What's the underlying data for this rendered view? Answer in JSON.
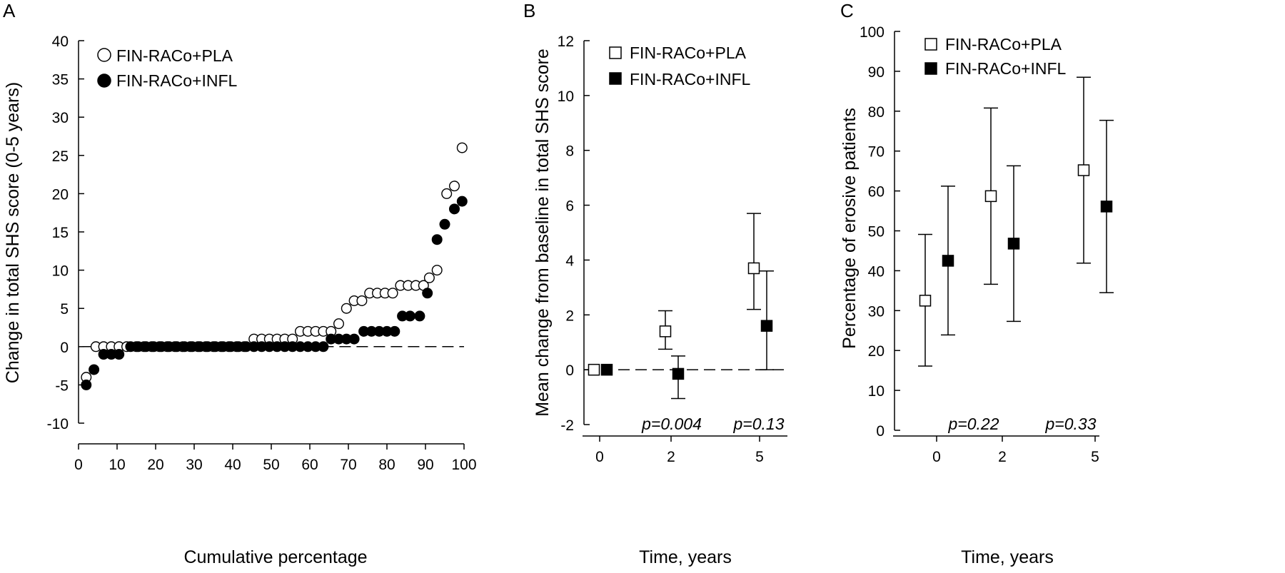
{
  "chart_data": [
    {
      "panel": "A",
      "type": "scatter",
      "xlabel": "Cumulative percentage",
      "ylabel": "Change in total SHS score (0-5 years)",
      "xlim": [
        0,
        100
      ],
      "ylim": [
        -10,
        40
      ],
      "xticks": [
        "0",
        "10",
        "20",
        "30",
        "40",
        "50",
        "60",
        "70",
        "80",
        "90",
        "100"
      ],
      "yticks": [
        "-10",
        "-5",
        "0",
        "5",
        "10",
        "15",
        "20",
        "25",
        "30",
        "35",
        "40"
      ],
      "legend": [
        {
          "label": "FIN-RACo+PLA",
          "marker": "open-circle"
        },
        {
          "label": "FIN-RACo+INFL",
          "marker": "filled-circle"
        }
      ],
      "legend_position": "top-left",
      "reference_line": {
        "y": 0,
        "style": "dashed"
      },
      "series": [
        {
          "name": "FIN-RACo+PLA",
          "points": [
            [
              2,
              -4
            ],
            [
              4.5,
              0
            ],
            [
              6.5,
              0
            ],
            [
              8.5,
              0
            ],
            [
              10.5,
              0
            ],
            [
              12.5,
              0
            ],
            [
              15,
              0
            ],
            [
              17,
              0
            ],
            [
              19,
              0
            ],
            [
              21,
              0
            ],
            [
              23,
              0
            ],
            [
              25,
              0
            ],
            [
              27,
              0
            ],
            [
              29,
              0
            ],
            [
              31,
              0
            ],
            [
              33,
              0
            ],
            [
              35,
              0
            ],
            [
              37,
              0
            ],
            [
              39,
              0
            ],
            [
              41,
              0
            ],
            [
              43,
              0
            ],
            [
              45.5,
              1
            ],
            [
              47.5,
              1
            ],
            [
              49.5,
              1
            ],
            [
              51.5,
              1
            ],
            [
              53.5,
              1
            ],
            [
              55.5,
              1
            ],
            [
              57.5,
              2
            ],
            [
              59.5,
              2
            ],
            [
              61.5,
              2
            ],
            [
              63.5,
              2
            ],
            [
              65.5,
              2
            ],
            [
              67.5,
              3
            ],
            [
              69.5,
              5
            ],
            [
              71.5,
              6
            ],
            [
              73.5,
              6
            ],
            [
              75.5,
              7
            ],
            [
              77.5,
              7
            ],
            [
              79.5,
              7
            ],
            [
              81.5,
              7
            ],
            [
              83.5,
              8
            ],
            [
              85.5,
              8
            ],
            [
              87.5,
              8
            ],
            [
              89.5,
              8
            ],
            [
              91,
              9
            ],
            [
              93,
              10
            ],
            [
              95.5,
              20
            ],
            [
              97.5,
              21
            ],
            [
              99.5,
              26
            ]
          ]
        },
        {
          "name": "FIN-RACo+INFL",
          "points": [
            [
              2,
              -5
            ],
            [
              4,
              -3
            ],
            [
              6.5,
              -1
            ],
            [
              8.5,
              -1
            ],
            [
              10.5,
              -1
            ],
            [
              13.5,
              0
            ],
            [
              15.5,
              0
            ],
            [
              17.5,
              0
            ],
            [
              19.5,
              0
            ],
            [
              21.5,
              0
            ],
            [
              23.5,
              0
            ],
            [
              25.5,
              0
            ],
            [
              27.5,
              0
            ],
            [
              29.5,
              0
            ],
            [
              31.5,
              0
            ],
            [
              33.5,
              0
            ],
            [
              35.5,
              0
            ],
            [
              37.5,
              0
            ],
            [
              39.5,
              0
            ],
            [
              41.5,
              0
            ],
            [
              43.5,
              0
            ],
            [
              45.5,
              0
            ],
            [
              47.5,
              0
            ],
            [
              49.5,
              0
            ],
            [
              51.5,
              0
            ],
            [
              53.5,
              0
            ],
            [
              55.5,
              0
            ],
            [
              57.5,
              0
            ],
            [
              59.5,
              0
            ],
            [
              61.5,
              0
            ],
            [
              63.5,
              0
            ],
            [
              65.5,
              1
            ],
            [
              67.5,
              1
            ],
            [
              69.5,
              1
            ],
            [
              71.5,
              1
            ],
            [
              74,
              2
            ],
            [
              76,
              2
            ],
            [
              78,
              2
            ],
            [
              80,
              2
            ],
            [
              82,
              2
            ],
            [
              84,
              4
            ],
            [
              86,
              4
            ],
            [
              88.5,
              4
            ],
            [
              90.5,
              7
            ],
            [
              93,
              14
            ],
            [
              95,
              16
            ],
            [
              97.5,
              18
            ],
            [
              99.5,
              19
            ]
          ]
        }
      ]
    },
    {
      "panel": "B",
      "type": "scatter",
      "xlabel": "Time, years",
      "ylabel": "Mean change from baseline in total SHS score",
      "categories": [
        "0",
        "2",
        "5"
      ],
      "ylim": [
        -2,
        12
      ],
      "yticks": [
        "-2",
        "0",
        "2",
        "4",
        "6",
        "8",
        "10",
        "12"
      ],
      "legend": [
        {
          "label": "FIN-RACo+PLA",
          "marker": "open-square"
        },
        {
          "label": "FIN-RACo+INFL",
          "marker": "filled-square"
        }
      ],
      "legend_position": "top-right",
      "reference_line": {
        "y": 0,
        "style": "dashed"
      },
      "series": [
        {
          "name": "FIN-RACo+PLA",
          "values": [
            0,
            1.4,
            3.7
          ],
          "lower": [
            null,
            0.75,
            2.2
          ],
          "upper": [
            null,
            2.15,
            5.7
          ]
        },
        {
          "name": "FIN-RACo+INFL",
          "values": [
            0,
            -0.15,
            1.6
          ],
          "lower": [
            null,
            -1.05,
            0
          ],
          "upper": [
            null,
            0.5,
            3.6
          ]
        }
      ],
      "annotations": [
        {
          "category": "2",
          "text": "p=0.004"
        },
        {
          "category": "5",
          "text": "p=0.13"
        }
      ]
    },
    {
      "panel": "C",
      "type": "scatter",
      "xlabel": "Time, years",
      "ylabel": "Percentage of erosive patients",
      "categories": [
        "0",
        "2",
        "5"
      ],
      "ylim": [
        0,
        100
      ],
      "yticks": [
        "0",
        "10",
        "20",
        "30",
        "40",
        "50",
        "60",
        "70",
        "80",
        "90",
        "100"
      ],
      "legend": [
        {
          "label": "FIN-RACo+PLA",
          "marker": "open-square"
        },
        {
          "label": "FIN-RACo+INFL",
          "marker": "filled-square"
        }
      ],
      "legend_position": "top-left",
      "series": [
        {
          "name": "FIN-RACo+PLA",
          "values": [
            32.5,
            58.7,
            65.2
          ],
          "lower": [
            16.1,
            36.6,
            41.9
          ],
          "upper": [
            49.1,
            80.8,
            88.5
          ]
        },
        {
          "name": "FIN-RACo+INFL",
          "values": [
            42.5,
            46.8,
            56.1
          ],
          "lower": [
            23.9,
            27.3,
            34.5
          ],
          "upper": [
            61.2,
            66.3,
            77.7
          ]
        }
      ],
      "annotations": [
        {
          "category": "2",
          "text": "p=0.22"
        },
        {
          "category": "5",
          "text": "p=0.33"
        }
      ]
    }
  ]
}
